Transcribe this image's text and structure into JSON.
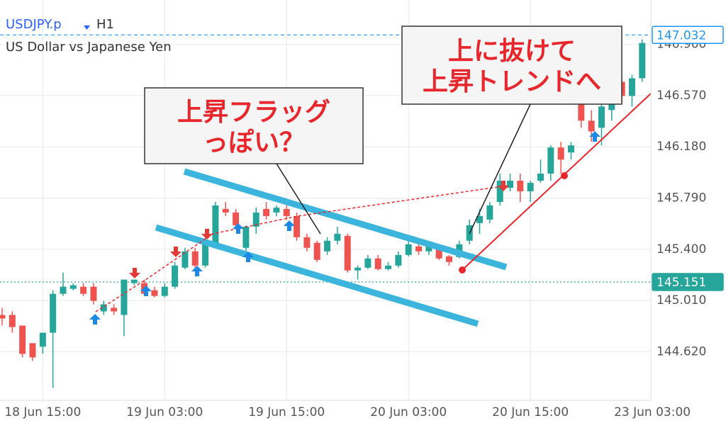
{
  "chart_data": {
    "type": "candlestick",
    "title": "USDJPY.p",
    "timeframe": "H1",
    "subtitle": "US Dollar vs Japanese Yen",
    "categories": [
      null,
      null,
      null,
      null,
      "18 Jun 15:00",
      null,
      null,
      null,
      null,
      null,
      null,
      null,
      null,
      null,
      null,
      null,
      "19 Jun 03:00",
      null,
      null,
      null,
      null,
      null,
      null,
      null,
      null,
      null,
      null,
      null,
      "19 Jun 15:00",
      null,
      null,
      null,
      null,
      null,
      null,
      null,
      null,
      null,
      null,
      null,
      "20 Jun 03:00",
      null,
      null,
      null,
      null,
      null,
      null,
      null,
      null,
      null,
      null,
      null,
      "20 Jun 15:00",
      null,
      null,
      null,
      null,
      null,
      null,
      null,
      null,
      null,
      null,
      null,
      "23 Jun 03:00"
    ],
    "open": [
      144.9,
      144.9,
      144.819,
      144.685,
      144.658,
      144.765,
      145.061,
      145.099,
      145.115,
      145.115,
      144.927,
      144.954,
      144.9,
      145.142,
      145.142,
      145.088,
      145.045,
      145.115,
      145.26,
      145.384,
      145.276,
      145.438,
      145.707,
      145.68,
      145.411,
      145.572,
      145.707,
      145.68,
      145.707,
      145.653,
      145.492,
      145.449,
      145.384,
      145.465,
      145.502,
      145.239,
      145.26,
      145.33,
      145.249,
      145.276,
      145.357,
      145.422,
      145.384,
      145.411,
      145.346,
      145.341,
      145.465,
      145.599,
      145.626,
      145.76,
      145.868,
      145.922,
      145.841,
      145.922,
      145.976,
      146.175,
      146.137,
      146.54,
      146.379,
      146.325,
      146.46,
      146.675,
      146.567,
      146.702,
      null
    ],
    "high": [
      144.954,
      144.927,
      144.819,
      144.685,
      144.765,
      145.088,
      145.223,
      145.142,
      145.142,
      145.142,
      145.007,
      144.981,
      145.169,
      145.169,
      145.169,
      145.115,
      145.142,
      145.303,
      145.411,
      145.411,
      145.518,
      145.76,
      145.76,
      145.707,
      145.583,
      145.717,
      145.76,
      145.734,
      145.734,
      145.68,
      145.518,
      145.465,
      145.492,
      145.572,
      145.518,
      145.276,
      145.357,
      145.357,
      145.303,
      145.384,
      145.465,
      145.449,
      145.438,
      145.438,
      145.357,
      145.465,
      145.626,
      145.707,
      145.76,
      145.976,
      145.976,
      145.976,
      145.922,
      146.083,
      146.191,
      146.218,
      146.218,
      146.702,
      146.46,
      146.54,
      146.675,
      146.702,
      146.729,
      146.998,
      null
    ],
    "low": [
      144.819,
      144.765,
      144.577,
      144.55,
      144.604,
      144.346,
      145.045,
      145.088,
      145.045,
      144.981,
      144.9,
      144.9,
      144.738,
      145.126,
      145.045,
      145.034,
      145.034,
      145.099,
      145.249,
      145.26,
      145.26,
      145.422,
      145.653,
      145.572,
      145.357,
      145.518,
      145.626,
      145.653,
      145.626,
      145.465,
      145.384,
      145.303,
      145.357,
      145.438,
      145.223,
      145.169,
      145.249,
      145.239,
      145.239,
      145.26,
      145.346,
      145.357,
      145.357,
      145.319,
      145.276,
      145.33,
      145.438,
      145.518,
      145.599,
      145.734,
      145.841,
      145.76,
      145.76,
      145.906,
      145.922,
      145.976,
      146.083,
      146.325,
      146.218,
      146.191,
      146.379,
      146.514,
      146.487,
      146.675,
      null
    ],
    "close": [
      144.873,
      144.808,
      144.604,
      144.577,
      144.765,
      145.061,
      145.115,
      145.126,
      145.061,
      145.007,
      144.981,
      144.927,
      145.169,
      145.169,
      145.061,
      145.045,
      145.115,
      145.276,
      145.384,
      145.276,
      145.465,
      145.734,
      145.68,
      145.583,
      145.572,
      145.68,
      145.653,
      145.717,
      145.653,
      145.492,
      145.411,
      145.319,
      145.465,
      145.518,
      145.239,
      145.26,
      145.33,
      145.249,
      145.276,
      145.357,
      145.438,
      145.384,
      145.422,
      145.33,
      145.303,
      145.438,
      145.583,
      145.653,
      145.734,
      145.922,
      145.922,
      145.841,
      145.906,
      145.976,
      146.175,
      146.083,
      146.191,
      146.379,
      146.298,
      146.487,
      146.514,
      146.567,
      146.702,
      146.971,
      null
    ],
    "up_color": "#26a69a",
    "down_color": "#ef5350",
    "ylim": [
      144.25,
      147.19
    ],
    "yticks": [
      {
        "value": 144.62,
        "label": "144.620"
      },
      {
        "value": 145.01,
        "label": "145.010"
      },
      {
        "value": 145.4,
        "label": "145.400"
      },
      {
        "value": 145.79,
        "label": "145.790"
      },
      {
        "value": 146.18,
        "label": "146.180"
      },
      {
        "value": 146.57,
        "label": "146.570"
      },
      {
        "value": 146.96,
        "label": "146.960"
      }
    ],
    "grid": true,
    "price_lines": [
      {
        "value": 147.032,
        "label": "147.032",
        "color": "#2196f3"
      },
      {
        "value": 145.151,
        "label": "145.151",
        "color": "#26a69a"
      }
    ],
    "annotations": [
      {
        "lines": [
          "上昇フラッグ",
          "っぽい？"
        ]
      },
      {
        "lines": [
          "上に抜けて",
          "上昇トレンドへ"
        ]
      }
    ]
  }
}
